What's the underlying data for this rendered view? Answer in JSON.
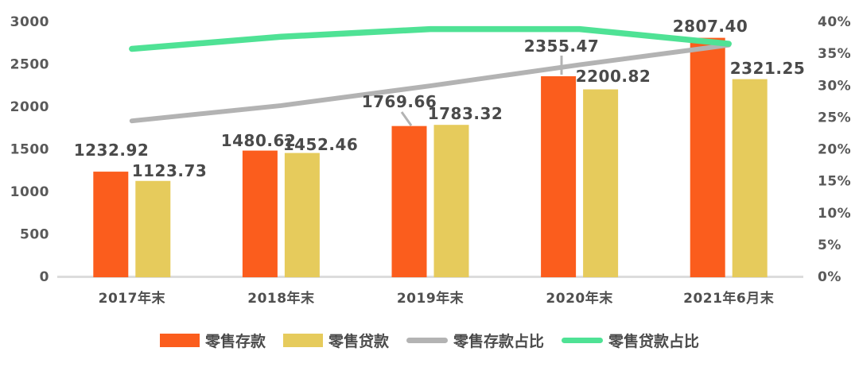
{
  "chart_data": {
    "type": "bar+line combo",
    "categories": [
      "2017年末",
      "2018年末",
      "2019年末",
      "2020年末",
      "2021年6月末"
    ],
    "bar_series": [
      {
        "name": "零售存款",
        "color": "#FB5D1D",
        "values": [
          1232.92,
          1480.62,
          1769.66,
          2355.47,
          2807.4
        ],
        "labels": [
          "1232.92",
          "1480.62",
          "1769.66",
          "2355.47",
          "2807.40"
        ]
      },
      {
        "name": "零售贷款",
        "color": "#E6CB5C",
        "values": [
          1123.73,
          1452.46,
          1783.32,
          2200.82,
          2321.25
        ],
        "labels": [
          "1123.73",
          "1452.46",
          "1783.32",
          "2200.82",
          "2321.25"
        ]
      }
    ],
    "line_series": [
      {
        "name": "零售存款占比",
        "color": "#B3B3B3",
        "values_pct": [
          24.4,
          26.8,
          29.9,
          33.2,
          36.3
        ]
      },
      {
        "name": "零售贷款占比",
        "color": "#4FE295",
        "values_pct": [
          35.7,
          37.6,
          38.8,
          38.8,
          36.5
        ]
      }
    ],
    "left_axis": {
      "ticks": [
        "3000",
        "2500",
        "2000",
        "1500",
        "1000",
        "500",
        "0"
      ],
      "max": 3000,
      "min": 0
    },
    "right_axis": {
      "ticks": [
        "40%",
        "35%",
        "30%",
        "25%",
        "20%",
        "15%",
        "10%",
        "5%",
        "0%"
      ],
      "max": 40,
      "min": 0
    },
    "axis_line_color": "#DCDCDC",
    "text_color": "#4F4F4F",
    "grid": false,
    "legend_position": "bottom",
    "title": ""
  },
  "legend": {
    "items": [
      {
        "label": "零售存款",
        "type": "bar"
      },
      {
        "label": "零售贷款",
        "type": "bar"
      },
      {
        "label": "零售存款占比",
        "type": "line"
      },
      {
        "label": "零售贷款占比",
        "type": "line"
      }
    ]
  }
}
